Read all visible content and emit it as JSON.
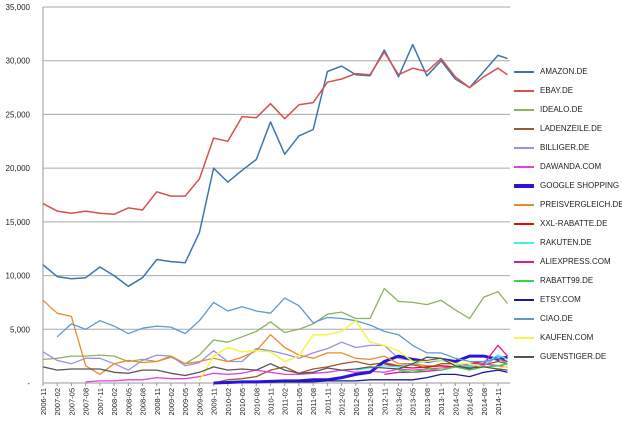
{
  "chart_data": {
    "type": "line",
    "title": "",
    "xlabel": "",
    "ylabel": "",
    "ylim": [
      0,
      35000
    ],
    "yticks": [
      "-",
      "5,000",
      "10,000",
      "15,000",
      "20,000",
      "25,000",
      "30,000",
      "35,000"
    ],
    "ytick_values": [
      0,
      5000,
      10000,
      15000,
      20000,
      25000,
      30000,
      35000
    ],
    "grid": true,
    "legend_position": "right",
    "value_unit": "thousands",
    "x": [
      "2006-11",
      "2007-02",
      "2007-05",
      "2007-08",
      "2007-11",
      "2008-02",
      "2008-05",
      "2008-08",
      "2008-11",
      "2009-02",
      "2009-05",
      "2009-08",
      "2009-11",
      "2010-02",
      "2010-05",
      "2010-08",
      "2010-11",
      "2011-02",
      "2011-05",
      "2011-08",
      "2011-11",
      "2012-02",
      "2012-05",
      "2012-08",
      "2012-11",
      "2013-02",
      "2013-05",
      "2013-08",
      "2013-11",
      "2014-02",
      "2014-05",
      "2014-08",
      "2014-11",
      "2015-01"
    ],
    "x_tick_labels": [
      "2006-11",
      "2007-02",
      "2007-05",
      "2007-08",
      "2007-11",
      "2008-02",
      "2008-05",
      "2008-08",
      "2008-11",
      "2009-02",
      "2009-05",
      "2009-08",
      "2009-11",
      "2010-02",
      "2010-05",
      "2010-08",
      "2010-11",
      "2011-02",
      "2011-05",
      "2011-08",
      "2011-11",
      "2012-02",
      "2012-05",
      "2012-08",
      "2012-11",
      "2013-02",
      "2013-05",
      "2013-08",
      "2013-11",
      "2014-02",
      "2014-05",
      "2014-08",
      "2014-11"
    ],
    "series": [
      {
        "name": "AMAZON.DE",
        "color": "#3b75af",
        "width": 1.5,
        "values": [
          11.0,
          9.9,
          9.7,
          9.8,
          10.8,
          10.0,
          9.0,
          9.8,
          11.5,
          11.3,
          11.2,
          14.0,
          20.0,
          18.7,
          19.8,
          20.8,
          24.3,
          21.3,
          23.0,
          23.6,
          29.0,
          29.5,
          28.7,
          28.6,
          31.0,
          28.5,
          31.5,
          28.6,
          30.0,
          28.3,
          27.5,
          29.0,
          30.5,
          30.2
        ]
      },
      {
        "name": "EBAY.DE",
        "color": "#d6524e",
        "width": 1.5,
        "values": [
          16.7,
          16.0,
          15.8,
          16.0,
          15.8,
          15.7,
          16.3,
          16.1,
          17.8,
          17.4,
          17.4,
          19.0,
          22.8,
          22.5,
          24.8,
          24.7,
          26.0,
          24.6,
          25.9,
          26.1,
          28.0,
          28.3,
          28.8,
          28.7,
          30.8,
          28.7,
          29.3,
          29.0,
          30.2,
          28.5,
          27.5,
          28.5,
          29.3,
          28.7
        ]
      },
      {
        "name": "IDEALO.DE",
        "color": "#8db35a",
        "width": 1.3,
        "values": [
          2.2,
          2.3,
          2.5,
          2.5,
          2.6,
          2.5,
          2.0,
          2.2,
          2.0,
          2.4,
          1.8,
          2.6,
          4.0,
          3.8,
          4.3,
          4.8,
          5.7,
          4.7,
          5.0,
          5.5,
          6.4,
          6.6,
          6.0,
          6.0,
          8.8,
          7.6,
          7.5,
          7.3,
          7.7,
          6.8,
          6.0,
          8.0,
          8.5,
          7.4
        ]
      },
      {
        "name": "LADENZEILE.DE",
        "color": "#9c5a2c",
        "width": 1.3,
        "values": [
          null,
          null,
          null,
          null,
          null,
          null,
          null,
          null,
          null,
          null,
          null,
          null,
          0,
          0.3,
          0.4,
          0.6,
          1.2,
          1.5,
          0.9,
          1.3,
          1.5,
          1.8,
          2.0,
          1.7,
          1.9,
          1.6,
          1.7,
          1.4,
          1.8,
          1.8,
          1.5,
          1.7,
          2.0,
          1.8
        ]
      },
      {
        "name": "BILLIGER.DE",
        "color": "#9b8ee6",
        "width": 1.3,
        "values": [
          2.9,
          2.1,
          1.8,
          2.3,
          2.3,
          1.8,
          1.2,
          2.1,
          2.6,
          2.5,
          1.6,
          1.9,
          3.0,
          2.0,
          2.0,
          3.2,
          3.0,
          2.7,
          2.3,
          2.8,
          3.2,
          3.8,
          3.3,
          3.5,
          3.5,
          2.3,
          2.1,
          2.0,
          2.1,
          1.9,
          1.6,
          1.6,
          2.5,
          2.4
        ]
      },
      {
        "name": "DAWANDA.COM",
        "color": "#e040e0",
        "width": 1.3,
        "values": [
          null,
          null,
          null,
          0.1,
          0.2,
          0.2,
          0.3,
          0.3,
          0.5,
          0.4,
          0.4,
          0.6,
          0.9,
          0.8,
          0.9,
          1.2,
          1.0,
          0.8,
          0.8,
          0.9,
          1.0,
          1.2,
          1.0,
          1.1,
          1.0,
          1.3,
          1.2,
          1.3,
          1.4,
          1.5,
          1.8,
          1.8,
          1.6,
          1.5
        ]
      },
      {
        "name": "GOOGLE SHOPPING",
        "color": "#2a14d8",
        "width": 3,
        "values": [
          null,
          null,
          null,
          null,
          null,
          null,
          null,
          null,
          null,
          null,
          null,
          null,
          0,
          0.05,
          0.1,
          0.1,
          0.15,
          0.2,
          0.2,
          0.3,
          0.3,
          0.5,
          0.8,
          1.0,
          2.0,
          2.5,
          2.2,
          2.0,
          2.2,
          2.0,
          2.5,
          2.5,
          2.2,
          2.4
        ]
      },
      {
        "name": "PREISVERGLEICH.DE",
        "color": "#e98b2a",
        "width": 1.3,
        "values": [
          7.7,
          6.5,
          6.2,
          1.6,
          0.8,
          1.8,
          2.1,
          1.9,
          2.0,
          2.5,
          1.8,
          2.0,
          2.3,
          2.0,
          2.4,
          3.0,
          4.5,
          3.3,
          2.6,
          2.3,
          2.8,
          2.8,
          2.3,
          2.2,
          2.5,
          1.8,
          1.8,
          1.6,
          1.6,
          1.5,
          1.4,
          1.5,
          1.6,
          1.8
        ]
      },
      {
        "name": "XXL-RABATTE.DE",
        "color": "#e01010",
        "width": 1.3,
        "values": [
          null,
          null,
          null,
          null,
          null,
          null,
          null,
          null,
          null,
          null,
          null,
          null,
          null,
          null,
          null,
          null,
          null,
          null,
          null,
          null,
          null,
          null,
          null,
          null,
          1.8,
          1.5,
          1.4,
          1.5,
          1.6,
          1.5,
          1.8,
          2.0,
          2.3,
          2.0
        ]
      },
      {
        "name": "RAKUTEN.DE",
        "color": "#3ff0f0",
        "width": 1.3,
        "values": [
          null,
          null,
          null,
          null,
          null,
          null,
          null,
          null,
          null,
          null,
          null,
          null,
          null,
          null,
          null,
          null,
          null,
          null,
          null,
          null,
          null,
          null,
          1.2,
          1.4,
          1.6,
          1.5,
          1.8,
          2.0,
          2.1,
          1.8,
          1.5,
          1.8,
          2.6,
          2.2
        ]
      },
      {
        "name": "ALIEXPRESS.COM",
        "color": "#d81b8a",
        "width": 1.3,
        "values": [
          null,
          null,
          null,
          null,
          null,
          null,
          null,
          null,
          null,
          null,
          null,
          null,
          null,
          null,
          null,
          null,
          null,
          null,
          null,
          null,
          null,
          null,
          null,
          null,
          0.8,
          1.0,
          1.0,
          1.1,
          1.2,
          1.5,
          1.3,
          1.8,
          3.5,
          2.5
        ]
      },
      {
        "name": "RABATT99.DE",
        "color": "#2ed84a",
        "width": 1.3,
        "values": [
          null,
          null,
          null,
          null,
          null,
          null,
          null,
          null,
          null,
          null,
          null,
          null,
          null,
          null,
          null,
          null,
          null,
          null,
          null,
          null,
          null,
          null,
          null,
          null,
          null,
          1.2,
          1.0,
          1.3,
          1.2,
          1.5,
          1.2,
          1.5,
          1.6,
          1.8
        ]
      },
      {
        "name": "ETSY.COM",
        "color": "#1a1a9a",
        "width": 1.3,
        "values": [
          null,
          null,
          null,
          null,
          null,
          null,
          null,
          null,
          null,
          null,
          null,
          null,
          null,
          null,
          null,
          null,
          0.1,
          0.1,
          0.1,
          0.1,
          0.2,
          0.2,
          0.2,
          0.3,
          0.3,
          0.3,
          0.3,
          0.5,
          0.8,
          0.8,
          0.6,
          1.0,
          1.2,
          1.0
        ]
      },
      {
        "name": "CIAO.DE",
        "color": "#5b9bd0",
        "width": 1.3,
        "values": [
          null,
          4.3,
          5.5,
          5.0,
          5.8,
          5.3,
          4.6,
          5.1,
          5.3,
          5.2,
          4.6,
          5.8,
          7.5,
          6.7,
          7.1,
          6.7,
          6.5,
          7.9,
          7.2,
          5.6,
          6.1,
          6.0,
          5.8,
          5.4,
          4.8,
          4.5,
          3.5,
          2.8,
          2.8,
          2.3,
          2.0,
          2.0,
          2.3,
          1.8
        ]
      },
      {
        "name": "KAUFEN.COM",
        "color": "#f5f542",
        "width": 1.5,
        "values": [
          null,
          null,
          null,
          null,
          null,
          null,
          null,
          null,
          null,
          null,
          null,
          0.2,
          2.5,
          3.3,
          2.9,
          3.0,
          2.9,
          2.0,
          2.5,
          4.5,
          4.5,
          4.8,
          5.8,
          3.8,
          3.5,
          3.0,
          2.0,
          2.0,
          2.2,
          1.8,
          1.8,
          1.5,
          1.3,
          1.6
        ]
      },
      {
        "name": "GUENSTIGER.DE",
        "color": "#555555",
        "width": 1.3,
        "values": [
          1.5,
          1.2,
          1.3,
          1.3,
          1.3,
          1.0,
          0.9,
          1.2,
          1.2,
          0.9,
          0.7,
          1.0,
          1.5,
          1.2,
          1.3,
          1.2,
          1.8,
          1.2,
          0.9,
          1.0,
          1.4,
          1.2,
          1.3,
          1.5,
          1.4,
          1.3,
          1.8,
          2.4,
          2.3,
          1.6,
          1.4,
          1.5,
          1.3,
          1.2
        ]
      }
    ]
  }
}
